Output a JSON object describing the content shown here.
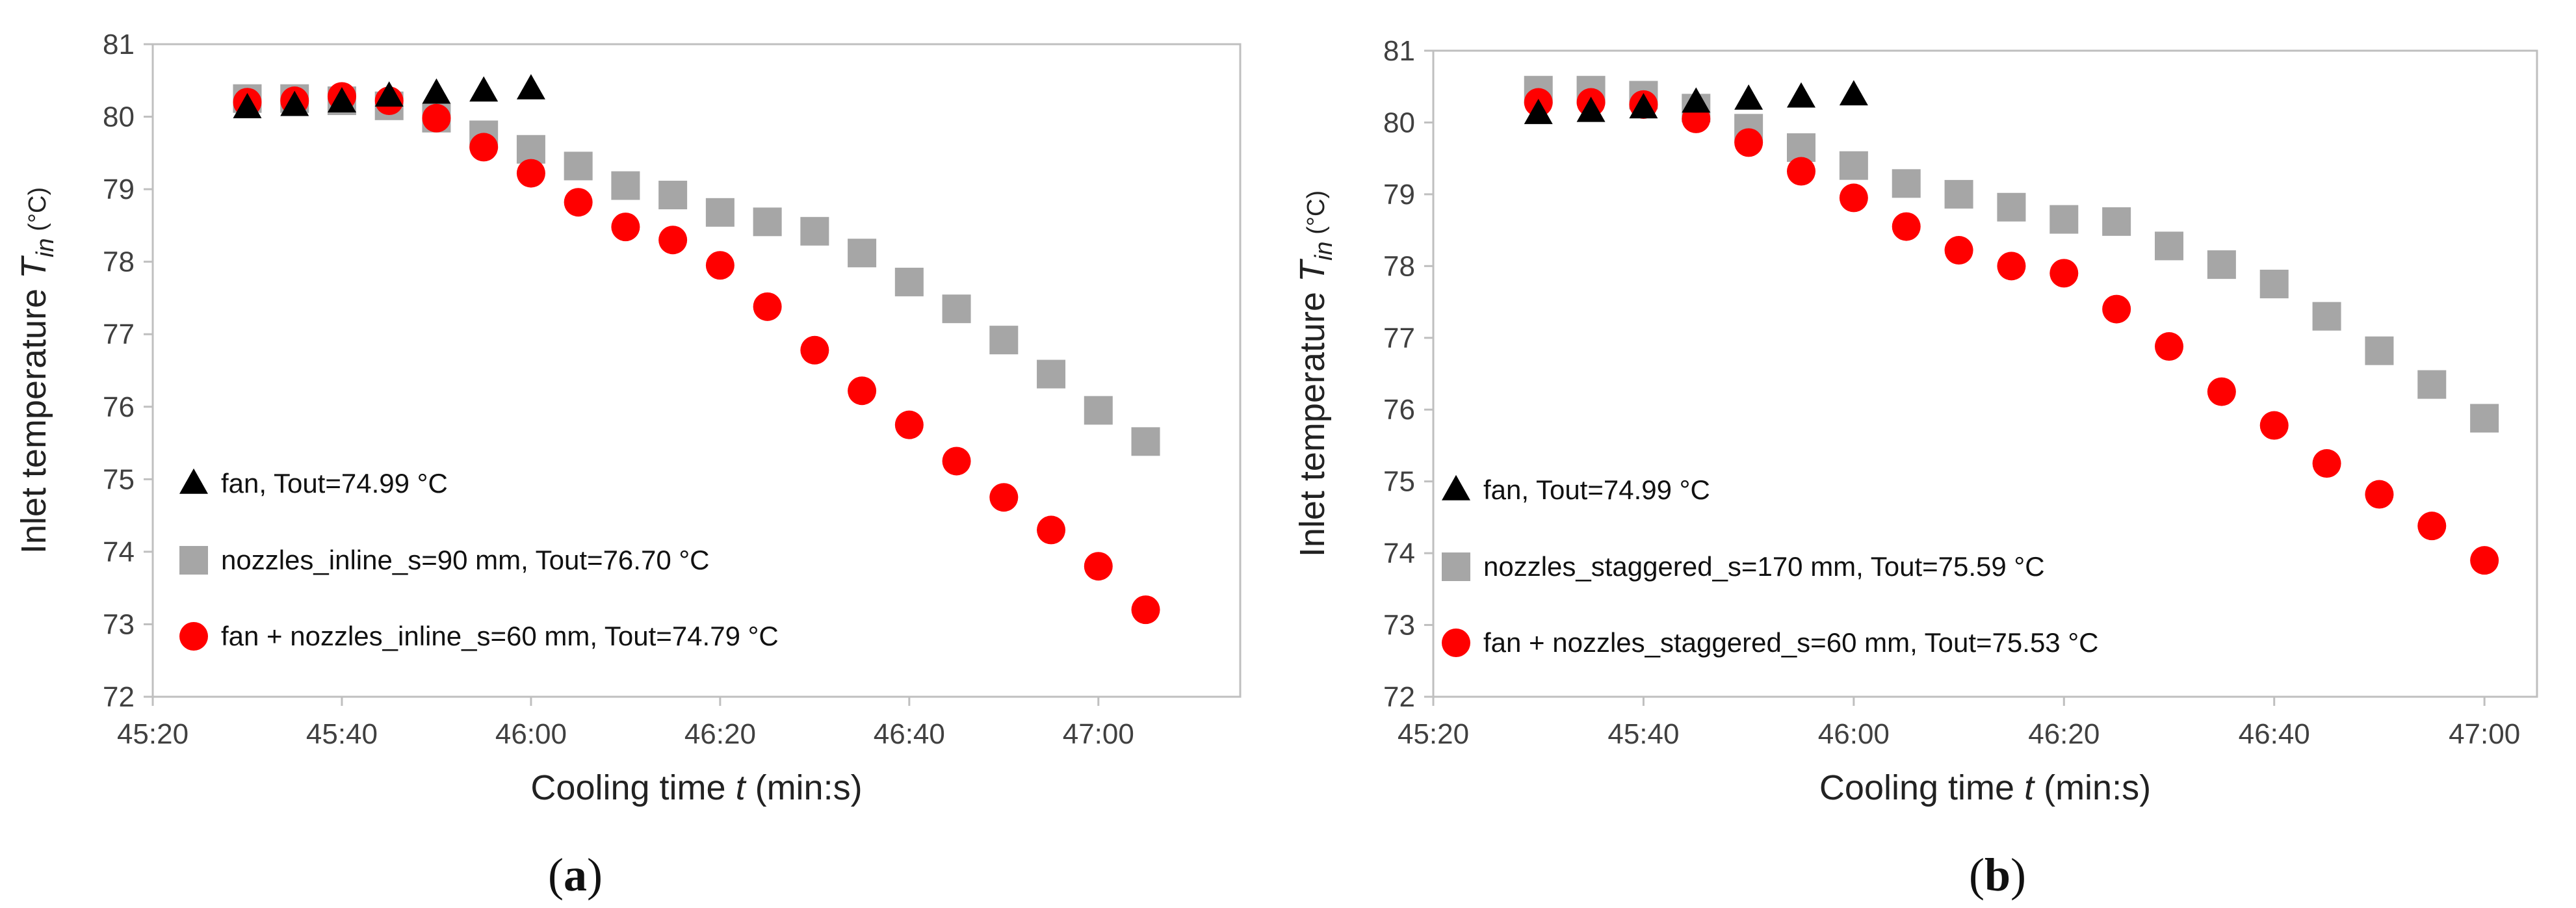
{
  "chart_data": [
    {
      "type": "scatter",
      "panel_label": "a",
      "xlabel": "Cooling time",
      "xlabel_var": "t",
      "xlabel_unit": "(min:s)",
      "ylabel": "Inlet temperature",
      "ylabel_var": "T",
      "ylabel_sub": "in",
      "ylabel_unit": "(°C)",
      "xlim": [
        2720,
        2835
      ],
      "ylim": [
        72,
        81
      ],
      "xticks": [
        {
          "value": 2720,
          "label": "45:20"
        },
        {
          "value": 2740,
          "label": "45:40"
        },
        {
          "value": 2760,
          "label": "46:00"
        },
        {
          "value": 2780,
          "label": "46:20"
        },
        {
          "value": 2800,
          "label": "46:40"
        },
        {
          "value": 2820,
          "label": "47:00"
        }
      ],
      "yticks": [
        72,
        73,
        74,
        75,
        76,
        77,
        78,
        79,
        80,
        81
      ],
      "legend_position": "bottom-left",
      "series": [
        {
          "name": "fan, Tout=74.99 °C",
          "marker": "triangle",
          "color": "#000000",
          "x": [
            2730,
            2735,
            2740,
            2745,
            2750,
            2755,
            2760
          ],
          "y": [
            80.12,
            80.15,
            80.2,
            80.28,
            80.32,
            80.35,
            80.38
          ]
        },
        {
          "name": "nozzles_inline_s=90 mm, Tout=76.70 °C",
          "marker": "square",
          "color": "#a6a6a6",
          "x": [
            2730,
            2735,
            2740,
            2745,
            2750,
            2755,
            2760,
            2765,
            2770,
            2775,
            2780,
            2785,
            2790,
            2795,
            2800,
            2805,
            2810,
            2815,
            2820,
            2825
          ],
          "y": [
            80.25,
            80.25,
            80.22,
            80.15,
            79.98,
            79.75,
            79.55,
            79.32,
            79.05,
            78.92,
            78.68,
            78.55,
            78.42,
            78.12,
            77.72,
            77.35,
            76.92,
            76.45,
            75.95,
            75.52
          ]
        },
        {
          "name": "fan + nozzles_inline_s=60 mm, Tout=74.79 °C",
          "marker": "circle",
          "color": "#ff0000",
          "x": [
            2730,
            2735,
            2740,
            2745,
            2750,
            2755,
            2760,
            2765,
            2770,
            2775,
            2780,
            2785,
            2790,
            2795,
            2800,
            2805,
            2810,
            2815,
            2820,
            2825
          ],
          "y": [
            80.2,
            80.22,
            80.28,
            80.22,
            79.98,
            79.58,
            79.22,
            78.82,
            78.48,
            78.3,
            77.95,
            77.38,
            76.78,
            76.22,
            75.75,
            75.25,
            74.75,
            74.3,
            73.8,
            73.2
          ]
        }
      ]
    },
    {
      "type": "scatter",
      "panel_label": "b",
      "xlabel": "Cooling time",
      "xlabel_var": "t",
      "xlabel_unit": "(min:s)",
      "ylabel": "Inlet temperature",
      "ylabel_var": "T",
      "ylabel_sub": "in",
      "ylabel_unit": "(°C)",
      "xlim": [
        2720,
        2825
      ],
      "ylim": [
        72,
        81
      ],
      "xticks": [
        {
          "value": 2720,
          "label": "45:20"
        },
        {
          "value": 2740,
          "label": "45:40"
        },
        {
          "value": 2760,
          "label": "46:00"
        },
        {
          "value": 2780,
          "label": "46:20"
        },
        {
          "value": 2800,
          "label": "46:40"
        },
        {
          "value": 2820,
          "label": "47:00"
        }
      ],
      "yticks": [
        72,
        73,
        74,
        75,
        76,
        77,
        78,
        79,
        80,
        81
      ],
      "legend_position": "bottom-left",
      "series": [
        {
          "name": "fan, Tout=74.99 °C",
          "marker": "triangle",
          "color": "#000000",
          "x": [
            2730,
            2735,
            2740,
            2745,
            2750,
            2755,
            2760
          ],
          "y": [
            80.12,
            80.15,
            80.2,
            80.28,
            80.32,
            80.35,
            80.38
          ]
        },
        {
          "name": "nozzles_staggered_s=170 mm, Tout=75.59 °C",
          "marker": "square",
          "color": "#a6a6a6",
          "x": [
            2730,
            2735,
            2740,
            2745,
            2750,
            2755,
            2760,
            2765,
            2770,
            2775,
            2780,
            2785,
            2790,
            2795,
            2800,
            2805,
            2810,
            2815,
            2820
          ],
          "y": [
            80.45,
            80.45,
            80.38,
            80.2,
            79.92,
            79.65,
            79.4,
            79.15,
            79.0,
            78.82,
            78.65,
            78.62,
            78.28,
            78.02,
            77.75,
            77.3,
            76.82,
            76.35,
            75.88
          ]
        },
        {
          "name": "fan + nozzles_staggered_s=60 mm, Tout=75.53 °C",
          "marker": "circle",
          "color": "#ff0000",
          "x": [
            2730,
            2735,
            2740,
            2745,
            2750,
            2755,
            2760,
            2765,
            2770,
            2775,
            2780,
            2785,
            2790,
            2795,
            2800,
            2805,
            2810,
            2815,
            2820
          ],
          "y": [
            80.28,
            80.28,
            80.25,
            80.05,
            79.72,
            79.32,
            78.95,
            78.55,
            78.22,
            78.0,
            77.9,
            77.4,
            76.88,
            76.25,
            75.78,
            75.25,
            74.82,
            74.38,
            73.9
          ]
        }
      ]
    }
  ]
}
